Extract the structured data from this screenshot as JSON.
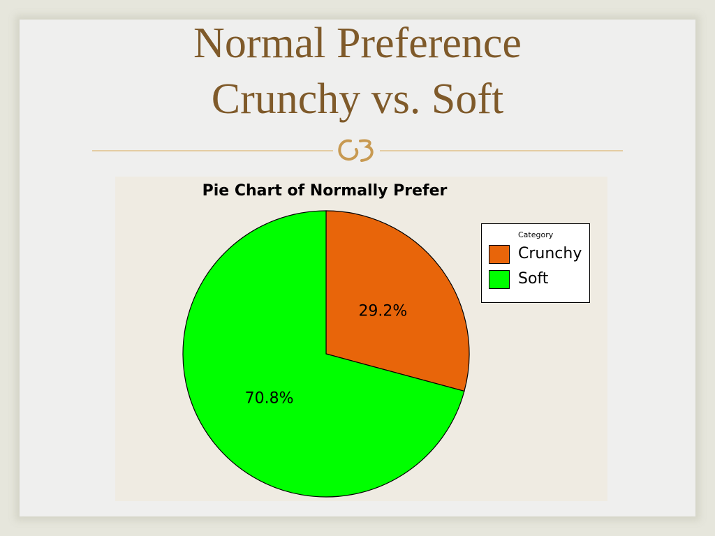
{
  "slide": {
    "title_line1": "Normal Preference",
    "title_line2": "Crunchy vs. Soft",
    "divider_icon": "ornament-icon",
    "colors": {
      "title": "#7f5a2a",
      "divider": "#e0c08a",
      "ornament": "#c89a52"
    }
  },
  "chart_data": {
    "type": "pie",
    "title": "Pie Chart of Normally Prefer",
    "legend_title": "Category",
    "legend_position": "top-right",
    "categories": [
      "Crunchy",
      "Soft"
    ],
    "values": [
      29.2,
      70.8
    ],
    "labels": [
      "29.2%",
      "70.8%"
    ],
    "colors": [
      "#e8650a",
      "#00ff00"
    ],
    "start_angle": "12 o'clock",
    "direction": "clockwise"
  }
}
